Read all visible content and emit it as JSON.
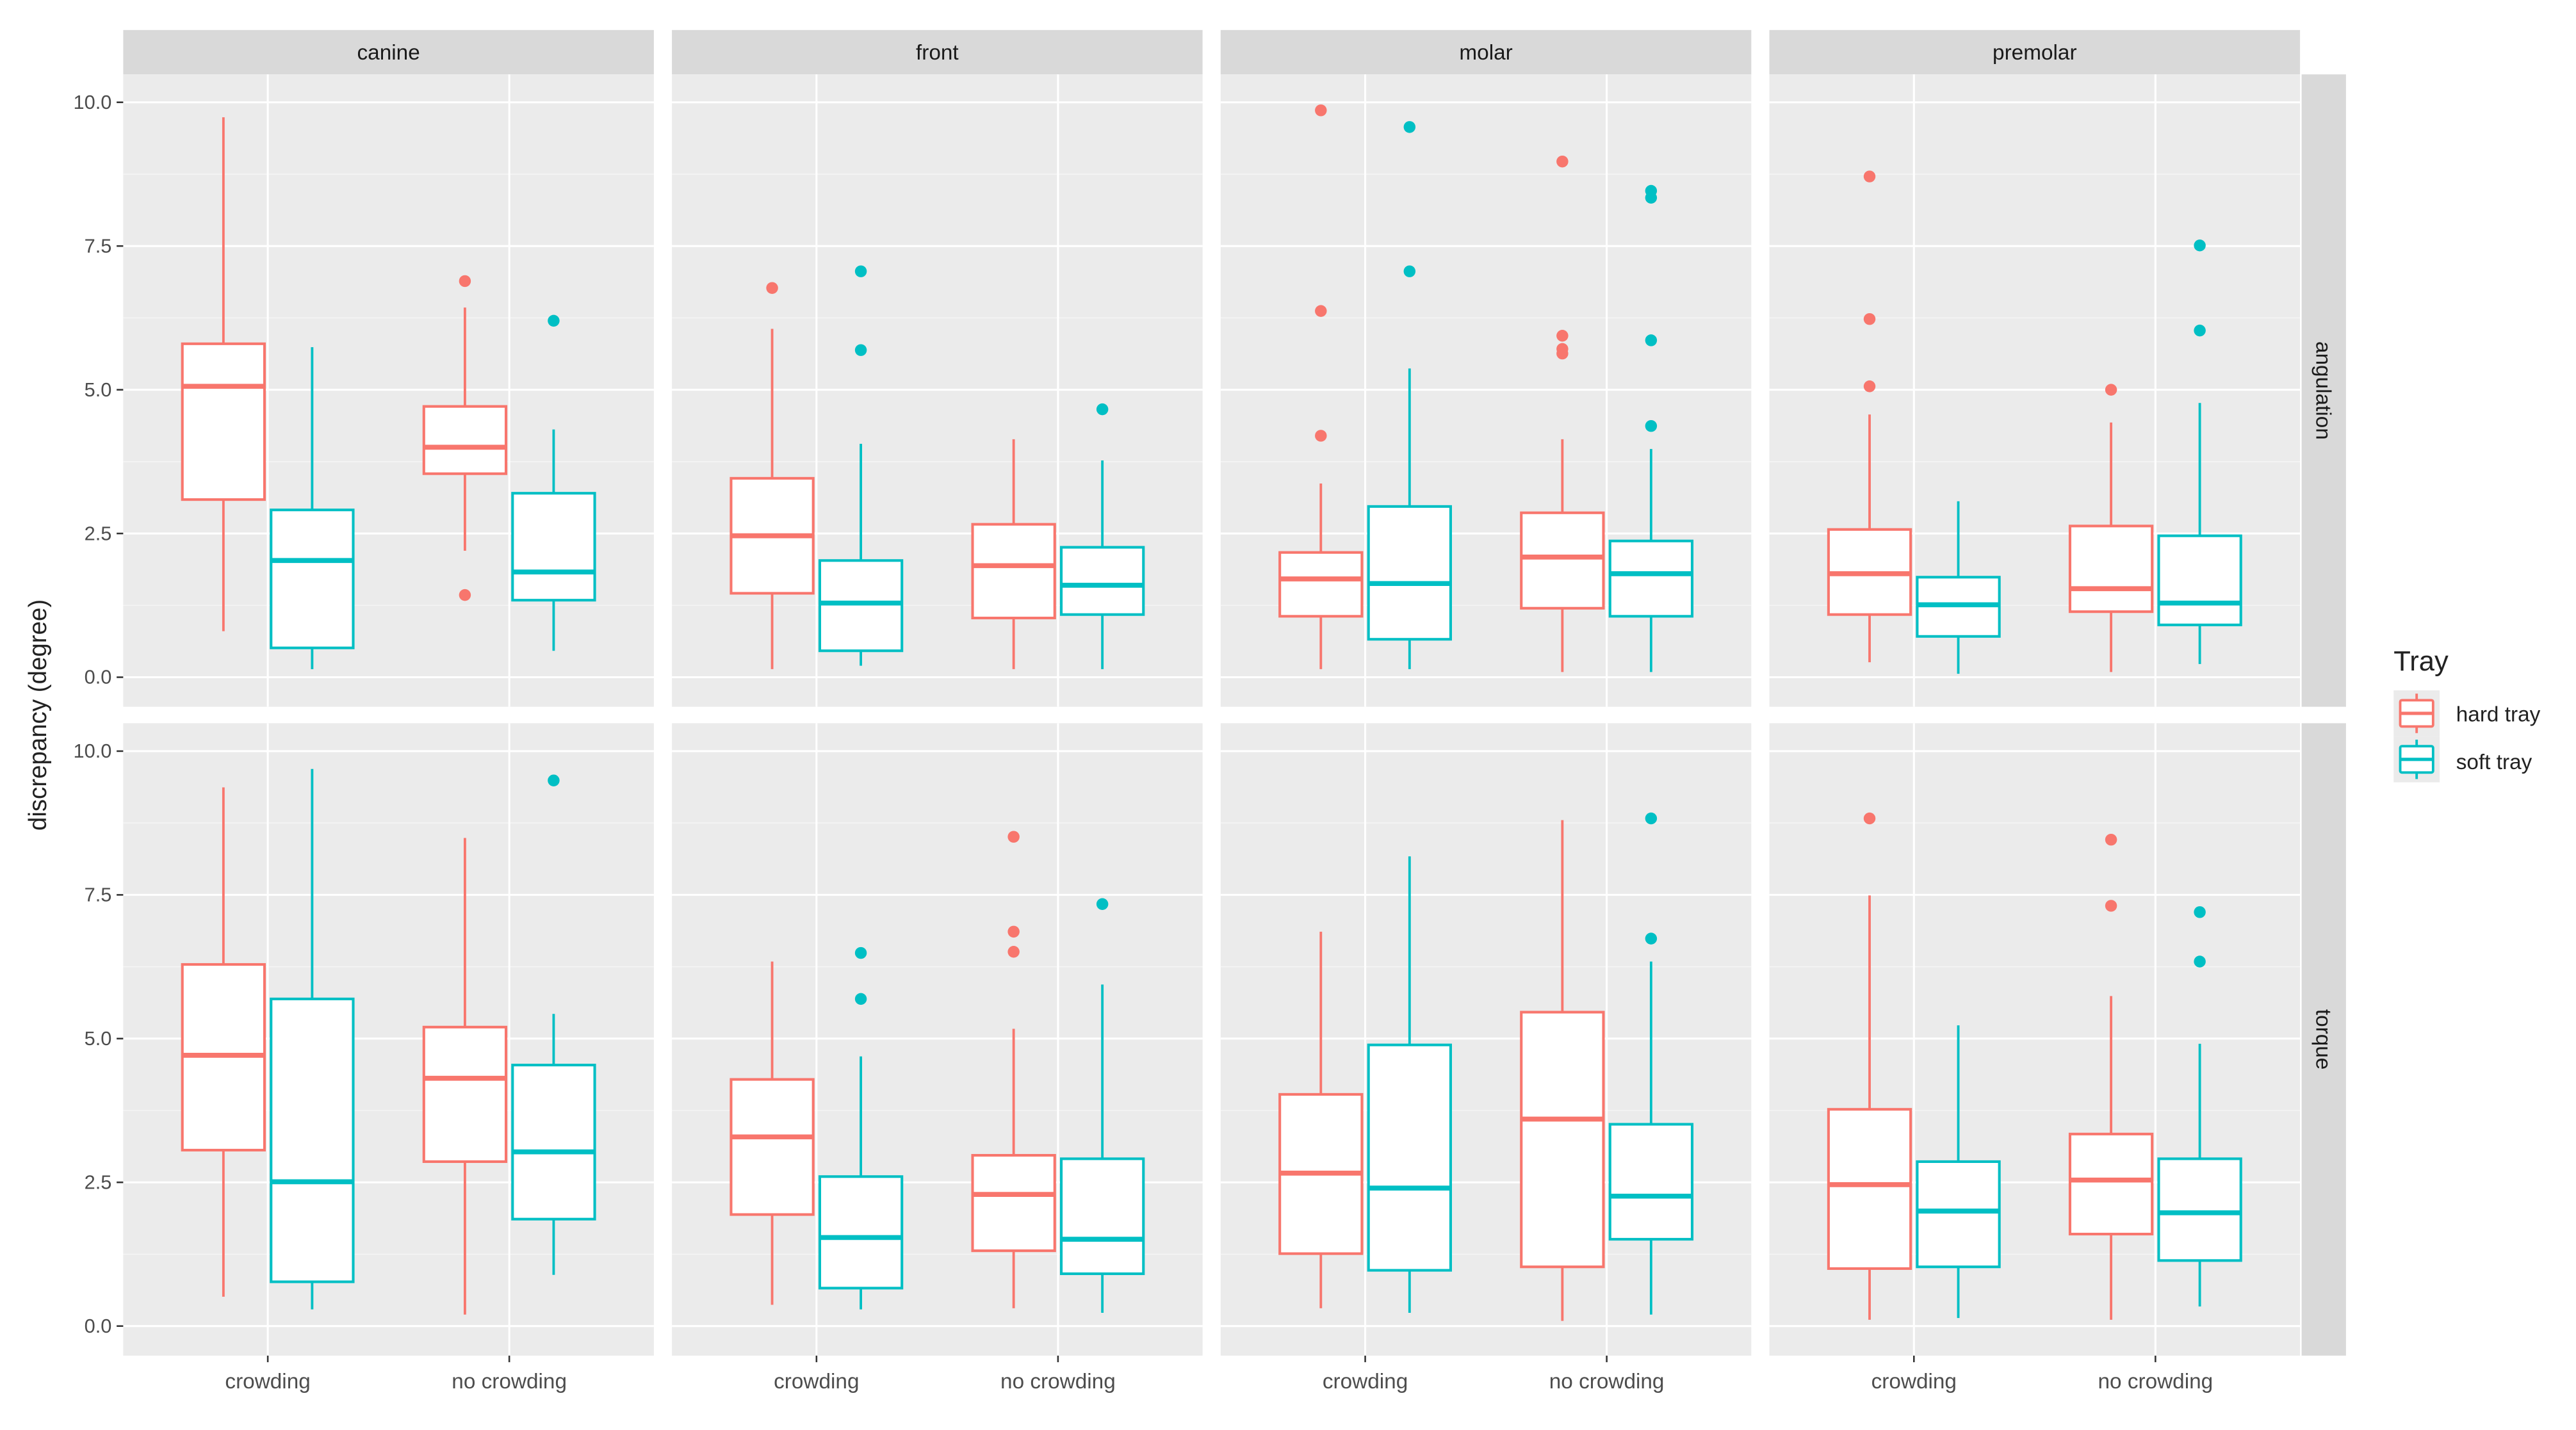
{
  "chart_data": {
    "type": "boxplot",
    "ylabel": "discrepancy (degree)",
    "xlabel": "",
    "facet_cols": [
      "canine",
      "front",
      "molar",
      "premolar"
    ],
    "facet_rows": [
      "angulation",
      "torque"
    ],
    "categories": [
      "crowding",
      "no crowding"
    ],
    "ylim": [
      0,
      10
    ],
    "yticks": [
      0,
      2.5,
      5,
      7.5,
      10
    ],
    "ytick_labels": [
      "0.0",
      "2.5",
      "5.0",
      "7.5",
      "10.0"
    ],
    "legend": {
      "title": "Tray",
      "placement": "right",
      "entries": [
        {
          "name": "hard tray",
          "color": "#F8766D"
        },
        {
          "name": "soft tray",
          "color": "#00BFC4"
        }
      ]
    },
    "grid": true,
    "boxes": [
      {
        "col": "canine",
        "row": "angulation",
        "cat": "crowding",
        "tray": "hard tray",
        "stats": [
          0.8,
          3.09,
          5.06,
          5.8,
          9.74
        ],
        "outliers": []
      },
      {
        "col": "canine",
        "row": "angulation",
        "cat": "crowding",
        "tray": "soft tray",
        "stats": [
          0.14,
          0.51,
          2.03,
          2.91,
          5.74
        ],
        "outliers": []
      },
      {
        "col": "canine",
        "row": "angulation",
        "cat": "no crowding",
        "tray": "hard tray",
        "stats": [
          2.2,
          3.54,
          4.0,
          4.71,
          6.43
        ],
        "outliers": [
          6.89,
          1.43
        ]
      },
      {
        "col": "canine",
        "row": "angulation",
        "cat": "no crowding",
        "tray": "soft tray",
        "stats": [
          0.46,
          1.34,
          1.83,
          3.2,
          4.31
        ],
        "outliers": [
          6.2
        ]
      },
      {
        "col": "front",
        "row": "angulation",
        "cat": "crowding",
        "tray": "hard tray",
        "stats": [
          0.14,
          1.46,
          2.46,
          3.46,
          6.06
        ],
        "outliers": [
          6.77
        ]
      },
      {
        "col": "front",
        "row": "angulation",
        "cat": "crowding",
        "tray": "soft tray",
        "stats": [
          0.2,
          0.46,
          1.29,
          2.03,
          4.06
        ],
        "outliers": [
          7.06,
          5.69
        ]
      },
      {
        "col": "front",
        "row": "angulation",
        "cat": "no crowding",
        "tray": "hard tray",
        "stats": [
          0.14,
          1.03,
          1.94,
          2.66,
          4.14
        ],
        "outliers": []
      },
      {
        "col": "front",
        "row": "angulation",
        "cat": "no crowding",
        "tray": "soft tray",
        "stats": [
          0.14,
          1.09,
          1.6,
          2.26,
          3.77
        ],
        "outliers": [
          4.66
        ]
      },
      {
        "col": "molar",
        "row": "angulation",
        "cat": "crowding",
        "tray": "hard tray",
        "stats": [
          0.14,
          1.06,
          1.71,
          2.17,
          3.37
        ],
        "outliers": [
          9.86,
          6.37,
          4.2
        ]
      },
      {
        "col": "molar",
        "row": "angulation",
        "cat": "crowding",
        "tray": "soft tray",
        "stats": [
          0.14,
          0.66,
          1.63,
          2.97,
          5.37
        ],
        "outliers": [
          9.57,
          7.06
        ]
      },
      {
        "col": "molar",
        "row": "angulation",
        "cat": "no crowding",
        "tray": "hard tray",
        "stats": [
          0.09,
          1.2,
          2.09,
          2.86,
          4.14
        ],
        "outliers": [
          8.97,
          5.94,
          5.71,
          5.63
        ]
      },
      {
        "col": "molar",
        "row": "angulation",
        "cat": "no crowding",
        "tray": "soft tray",
        "stats": [
          0.09,
          1.06,
          1.8,
          2.37,
          3.97
        ],
        "outliers": [
          8.46,
          8.34,
          5.86,
          4.37
        ]
      },
      {
        "col": "premolar",
        "row": "angulation",
        "cat": "crowding",
        "tray": "hard tray",
        "stats": [
          0.26,
          1.09,
          1.8,
          2.57,
          4.57
        ],
        "outliers": [
          8.71,
          6.23,
          5.06
        ]
      },
      {
        "col": "premolar",
        "row": "angulation",
        "cat": "crowding",
        "tray": "soft tray",
        "stats": [
          0.06,
          0.71,
          1.26,
          1.74,
          3.06
        ],
        "outliers": []
      },
      {
        "col": "premolar",
        "row": "angulation",
        "cat": "no crowding",
        "tray": "hard tray",
        "stats": [
          0.09,
          1.14,
          1.54,
          2.63,
          4.43
        ],
        "outliers": [
          5.0
        ]
      },
      {
        "col": "premolar",
        "row": "angulation",
        "cat": "no crowding",
        "tray": "soft tray",
        "stats": [
          0.23,
          0.91,
          1.29,
          2.46,
          4.77
        ],
        "outliers": [
          7.51,
          6.03
        ]
      },
      {
        "col": "canine",
        "row": "torque",
        "cat": "crowding",
        "tray": "hard tray",
        "stats": [
          0.51,
          3.06,
          4.71,
          6.29,
          9.37
        ],
        "outliers": []
      },
      {
        "col": "canine",
        "row": "torque",
        "cat": "crowding",
        "tray": "soft tray",
        "stats": [
          0.29,
          0.77,
          2.51,
          5.69,
          9.69
        ],
        "outliers": []
      },
      {
        "col": "canine",
        "row": "torque",
        "cat": "no crowding",
        "tray": "hard tray",
        "stats": [
          0.2,
          2.86,
          4.31,
          5.2,
          8.49
        ],
        "outliers": []
      },
      {
        "col": "canine",
        "row": "torque",
        "cat": "no crowding",
        "tray": "soft tray",
        "stats": [
          0.89,
          1.86,
          3.03,
          4.54,
          5.43
        ],
        "outliers": [
          9.49
        ]
      },
      {
        "col": "front",
        "row": "torque",
        "cat": "crowding",
        "tray": "hard tray",
        "stats": [
          0.37,
          1.94,
          3.29,
          4.29,
          6.34
        ],
        "outliers": []
      },
      {
        "col": "front",
        "row": "torque",
        "cat": "crowding",
        "tray": "soft tray",
        "stats": [
          0.29,
          0.66,
          1.54,
          2.6,
          4.69
        ],
        "outliers": [
          6.49,
          5.69
        ]
      },
      {
        "col": "front",
        "row": "torque",
        "cat": "no crowding",
        "tray": "hard tray",
        "stats": [
          0.31,
          1.31,
          2.29,
          2.97,
          5.17
        ],
        "outliers": [
          8.51,
          6.86,
          6.51
        ]
      },
      {
        "col": "front",
        "row": "torque",
        "cat": "no crowding",
        "tray": "soft tray",
        "stats": [
          0.23,
          0.91,
          1.51,
          2.91,
          5.94
        ],
        "outliers": [
          7.34
        ]
      },
      {
        "col": "molar",
        "row": "torque",
        "cat": "crowding",
        "tray": "hard tray",
        "stats": [
          0.31,
          1.26,
          2.66,
          4.03,
          6.86
        ],
        "outliers": []
      },
      {
        "col": "molar",
        "row": "torque",
        "cat": "crowding",
        "tray": "soft tray",
        "stats": [
          0.23,
          0.97,
          2.4,
          4.89,
          8.17
        ],
        "outliers": []
      },
      {
        "col": "molar",
        "row": "torque",
        "cat": "no crowding",
        "tray": "hard tray",
        "stats": [
          0.09,
          1.03,
          3.6,
          5.46,
          8.8
        ],
        "outliers": []
      },
      {
        "col": "molar",
        "row": "torque",
        "cat": "no crowding",
        "tray": "soft tray",
        "stats": [
          0.2,
          1.51,
          2.26,
          3.51,
          6.34
        ],
        "outliers": [
          8.83,
          6.74
        ]
      },
      {
        "col": "premolar",
        "row": "torque",
        "cat": "crowding",
        "tray": "hard tray",
        "stats": [
          0.11,
          1.0,
          2.46,
          3.77,
          7.49
        ],
        "outliers": [
          8.83
        ]
      },
      {
        "col": "premolar",
        "row": "torque",
        "cat": "crowding",
        "tray": "soft tray",
        "stats": [
          0.14,
          1.03,
          2.0,
          2.86,
          5.23
        ],
        "outliers": []
      },
      {
        "col": "premolar",
        "row": "torque",
        "cat": "no crowding",
        "tray": "hard tray",
        "stats": [
          0.11,
          1.6,
          2.54,
          3.34,
          5.74
        ],
        "outliers": [
          8.46,
          7.31
        ]
      },
      {
        "col": "premolar",
        "row": "torque",
        "cat": "no crowding",
        "tray": "soft tray",
        "stats": [
          0.34,
          1.14,
          1.97,
          2.91,
          4.91
        ],
        "outliers": [
          7.2,
          6.34
        ]
      }
    ]
  }
}
